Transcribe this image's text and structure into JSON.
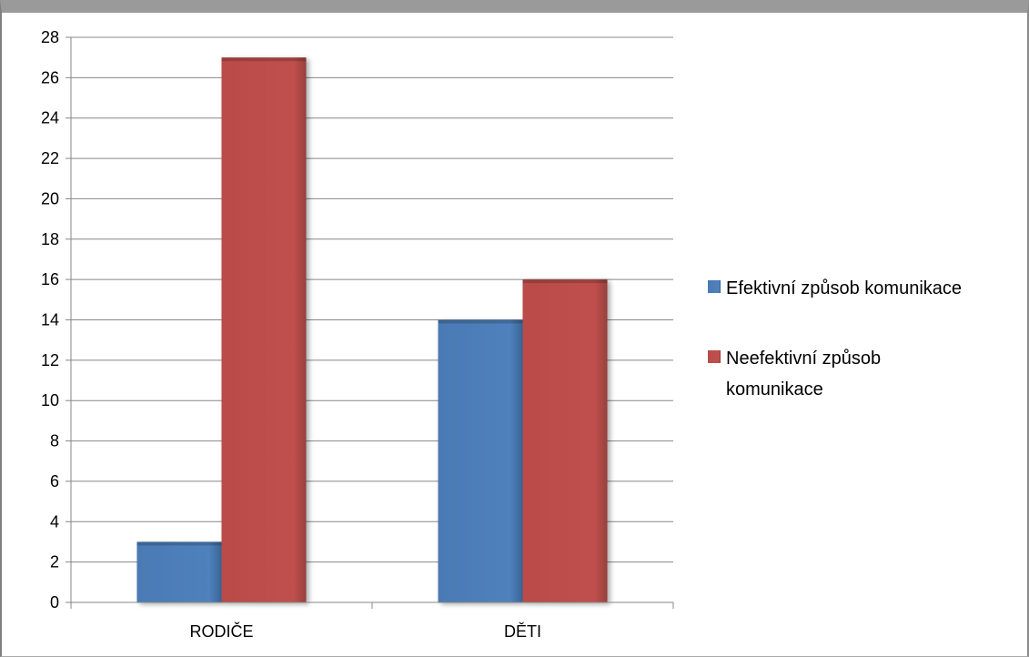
{
  "chart_data": {
    "type": "bar",
    "categories": [
      "RODIČE",
      "DĚTI"
    ],
    "series": [
      {
        "name": "Efektivní způsob komunikace",
        "values": [
          3,
          14
        ],
        "color": "#4f81bd"
      },
      {
        "name": "Neefektivní způsob komunikace",
        "values": [
          27,
          16
        ],
        "color": "#c0504d"
      }
    ],
    "ylim": [
      0,
      28
    ],
    "yticks": [
      0,
      2,
      4,
      6,
      8,
      10,
      12,
      14,
      16,
      18,
      20,
      22,
      24,
      26,
      28
    ],
    "grid": true,
    "legend_position": "right",
    "legend_lines": [
      [
        "Efektivní způsob komunikace"
      ],
      [
        "Neefektivní způsob",
        "komunikace"
      ]
    ]
  }
}
